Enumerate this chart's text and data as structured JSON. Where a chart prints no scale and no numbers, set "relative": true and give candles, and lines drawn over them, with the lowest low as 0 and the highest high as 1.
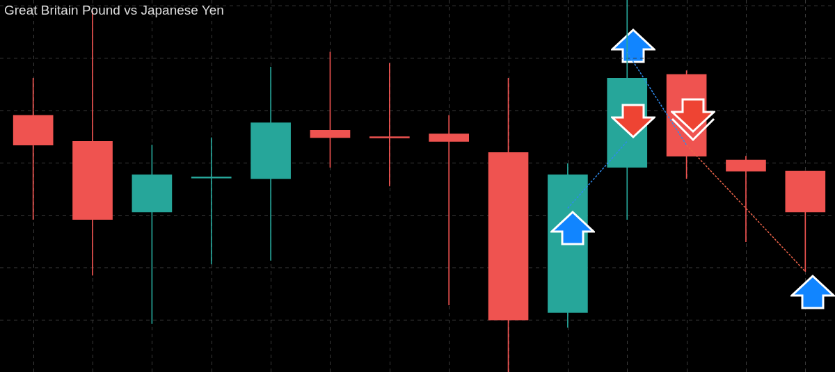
{
  "chart_data": {
    "type": "candlestick",
    "title": "Great Britain Pound vs Japanese Yen",
    "relative": true,
    "grid": true,
    "categories": [
      null,
      null,
      null,
      null,
      null,
      null,
      null,
      null,
      null,
      null,
      null,
      null,
      null,
      null
    ],
    "ohlc": [
      [
        0.69,
        0.79,
        0.41,
        0.61
      ],
      [
        0.62,
        0.97,
        0.26,
        0.41
      ],
      [
        0.43,
        0.61,
        0.13,
        0.53
      ],
      [
        0.521,
        0.63,
        0.29,
        0.524
      ],
      [
        0.52,
        0.82,
        0.3,
        0.67
      ],
      [
        0.65,
        0.86,
        0.55,
        0.63
      ],
      [
        0.631,
        0.83,
        0.5,
        0.629
      ],
      [
        0.64,
        0.69,
        0.18,
        0.62
      ],
      [
        0.59,
        0.79,
        0,
        0.14
      ],
      [
        0.16,
        0.56,
        0.12,
        0.53
      ],
      [
        0.55,
        1,
        0.41,
        0.79
      ],
      [
        0.8,
        0.81,
        0.52,
        0.58
      ],
      [
        0.57,
        0.58,
        0.35,
        0.54
      ],
      [
        0.54,
        0.54,
        0.27,
        0.43
      ]
    ],
    "colors": [
      "#ef5350",
      "#ef5350",
      "#26a69a",
      "#26a69a",
      "#26a69a",
      "#ef5350",
      "#ef5350",
      "#ef5350",
      "#ef5350",
      "#26a69a",
      "#26a69a",
      "#ef5350",
      "#ef5350",
      "#ef5350"
    ],
    "series": [
      {
        "type": "line",
        "color": "#2f8cf0",
        "line_style": "dashed",
        "marker": "none",
        "values": [
          null,
          null,
          null,
          null,
          null,
          null,
          null,
          null,
          null,
          0.44,
          0.62,
          null,
          null,
          null
        ]
      },
      {
        "type": "line",
        "color": "#2f8cf0",
        "line_style": "dashed",
        "marker": "none",
        "values": [
          null,
          null,
          null,
          null,
          null,
          null,
          null,
          null,
          null,
          null,
          0.86,
          0.61,
          null,
          null
        ]
      },
      {
        "type": "line",
        "color": "#f0654a",
        "line_style": "dashed",
        "marker": "none",
        "values": [
          null,
          null,
          null,
          null,
          null,
          null,
          null,
          null,
          null,
          null,
          null,
          0.61,
          null,
          0.27
        ]
      }
    ]
  }
}
